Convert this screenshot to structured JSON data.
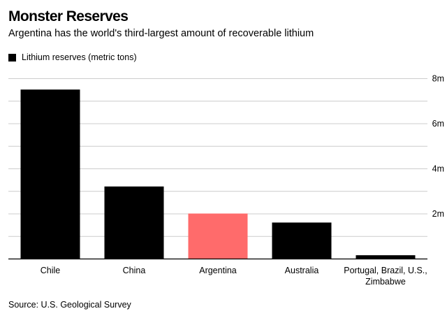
{
  "header": {
    "title": "Monster Reserves",
    "subtitle": "Argentina has the world's third-largest amount of recoverable lithium"
  },
  "legend": {
    "label": "Lithium reserves (metric tons)"
  },
  "source": {
    "text": "Source: U.S. Geological Survey"
  },
  "colors": {
    "default_bar": "#000000",
    "highlight_bar": "#ff6b6b",
    "gridline": "#cccccc",
    "axis": "#000000"
  },
  "chart_data": {
    "type": "bar",
    "title": "Monster Reserves",
    "subtitle": "Argentina has the world's third-largest amount of recoverable lithium",
    "xlabel": "",
    "ylabel": "",
    "categories": [
      [
        "Chile"
      ],
      [
        "China"
      ],
      [
        "Argentina"
      ],
      [
        "Australia"
      ],
      [
        "Portugal, Brazil, U.S.,",
        "Zimbabwe"
      ]
    ],
    "series": [
      {
        "name": "Lithium reserves (metric tons)",
        "values": [
          7500000,
          3200000,
          2000000,
          1600000,
          150000
        ]
      }
    ],
    "highlight_index": 2,
    "ylim": [
      0,
      8000000
    ],
    "yticks": [
      {
        "value": 2000000,
        "label": "2m"
      },
      {
        "value": 4000000,
        "label": "4m"
      },
      {
        "value": 6000000,
        "label": "6m"
      },
      {
        "value": 8000000,
        "label": "8m"
      }
    ],
    "minor_gridlines": [
      1000000,
      3000000,
      5000000,
      7000000
    ],
    "grid": true,
    "legend_position": "top-left",
    "y_axis_side": "right"
  }
}
